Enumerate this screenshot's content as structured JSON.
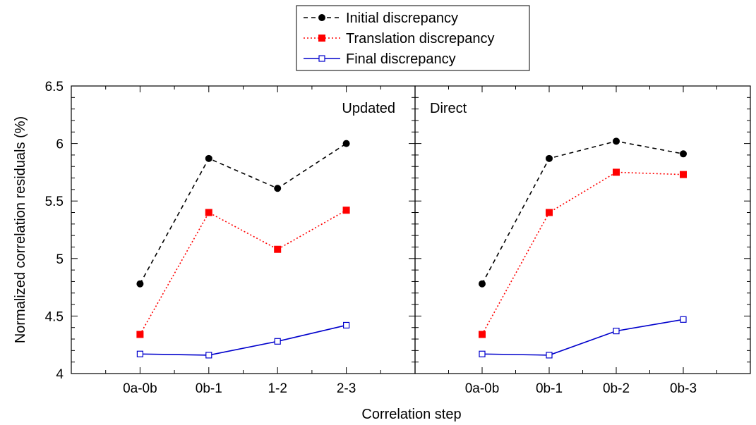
{
  "chart_data": {
    "type": "line",
    "xlabel": "Correlation step",
    "ylabel": "Normalized correlation residuals (%)",
    "ylim": [
      4,
      6.5
    ],
    "yticks": [
      "4",
      "4.5",
      "5",
      "5.5",
      "6",
      "6.5"
    ],
    "legend": {
      "placement": "top-center",
      "entries": [
        "Initial discrepancy",
        "Translation discrepancy",
        "Final discrepancy"
      ]
    },
    "series_styles": [
      {
        "color": "#000000",
        "dash": "6,5",
        "marker": "circle-filled"
      },
      {
        "color": "#ff0000",
        "dash": "2,3",
        "marker": "square-filled"
      },
      {
        "color": "#0000cc",
        "dash": "",
        "marker": "square-open"
      }
    ],
    "panels": [
      {
        "label": "Updated",
        "categories": [
          "0a-0b",
          "0b-1",
          "1-2",
          "2-3"
        ],
        "series": [
          {
            "name": "Initial discrepancy",
            "values": [
              4.78,
              5.87,
              5.61,
              6.0
            ]
          },
          {
            "name": "Translation discrepancy",
            "values": [
              4.34,
              5.4,
              5.08,
              5.42
            ]
          },
          {
            "name": "Final discrepancy",
            "values": [
              4.17,
              4.16,
              4.28,
              4.42
            ]
          }
        ]
      },
      {
        "label": "Direct",
        "categories": [
          "0a-0b",
          "0b-1",
          "0b-2",
          "0b-3"
        ],
        "series": [
          {
            "name": "Initial discrepancy",
            "values": [
              4.78,
              5.87,
              6.02,
              5.91
            ]
          },
          {
            "name": "Translation discrepancy",
            "values": [
              4.34,
              5.4,
              5.75,
              5.73
            ]
          },
          {
            "name": "Final discrepancy",
            "values": [
              4.17,
              4.16,
              4.37,
              4.47
            ]
          }
        ]
      }
    ]
  }
}
